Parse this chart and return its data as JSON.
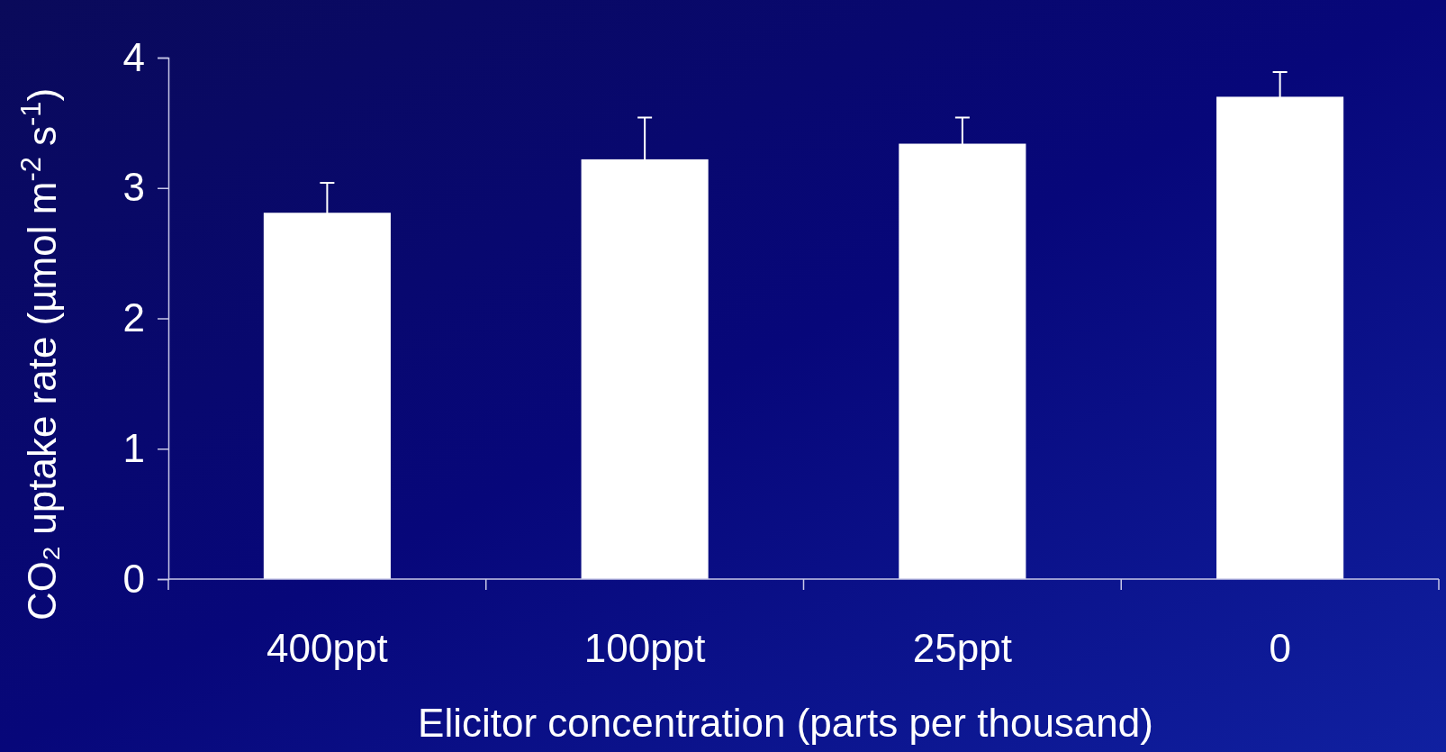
{
  "chart_data": {
    "type": "bar",
    "xlabel": "Elicitor concentration (parts per thousand)",
    "ylabel": "CO₂ uptake rate (µmol m$^{-2}$ s$^{-1}$)",
    "categories": [
      "400ppt",
      "100ppt",
      "25ppt",
      "0"
    ],
    "values": [
      2.81,
      3.22,
      3.34,
      3.7
    ],
    "errors": [
      0.23,
      0.32,
      0.2,
      0.19
    ],
    "color": "#ffffff",
    "ylim": [
      0,
      4
    ],
    "yticks": [
      0,
      1,
      2,
      3,
      4
    ],
    "grid": false
  }
}
